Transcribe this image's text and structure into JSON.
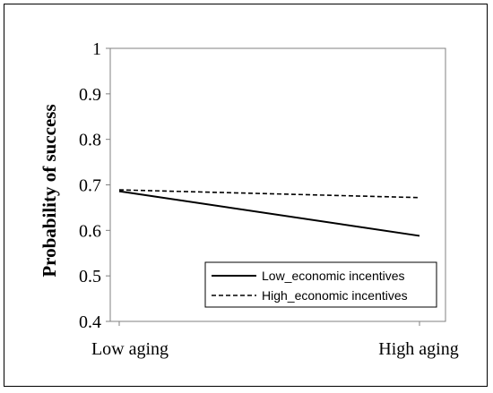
{
  "chart_data": {
    "type": "line",
    "title": "",
    "xlabel": "",
    "ylabel": "Probability of success",
    "categories": [
      "Low aging",
      "High aging"
    ],
    "ylim": [
      0.4,
      1.0
    ],
    "yticks": [
      "0.4",
      "0.5",
      "0.6",
      "0.7",
      "0.8",
      "0.9",
      "1"
    ],
    "grid": false,
    "legend_position": "bottom-right",
    "series": [
      {
        "name": "Low_economic incentives",
        "values": [
          0.686,
          0.588
        ],
        "style": "solid",
        "color": "#000000"
      },
      {
        "name": "High_economic incentives",
        "values": [
          0.689,
          0.672
        ],
        "style": "dashed",
        "color": "#000000"
      }
    ]
  }
}
